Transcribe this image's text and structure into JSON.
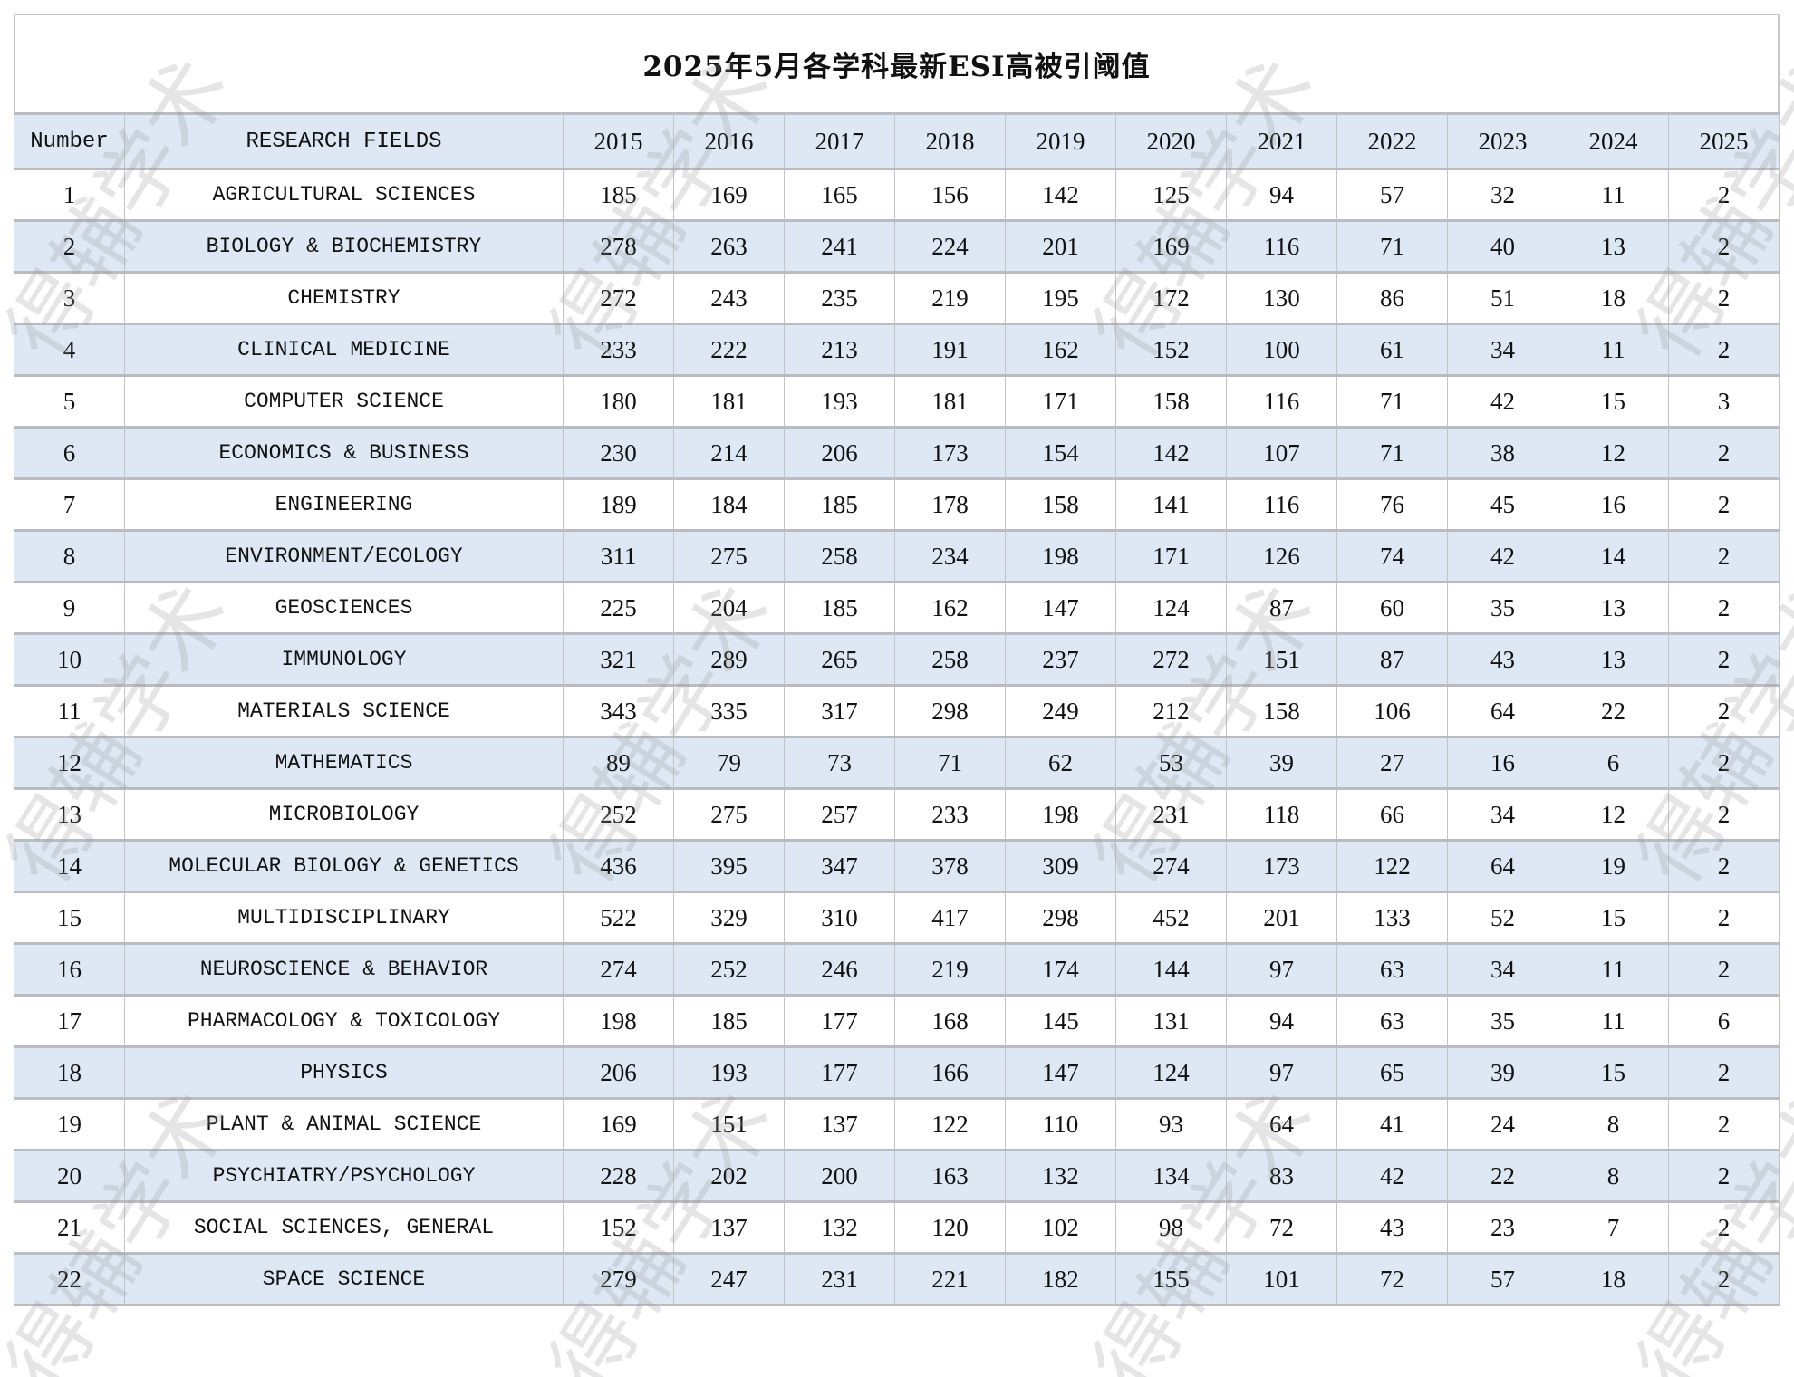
{
  "title": "2025年5月各学科最新ESI高被引阈值",
  "watermark": "得辅学术",
  "colors": {
    "header_bg": "#dde8f4",
    "alt_row_bg": "#dde8f4",
    "border": "#b9bcc0"
  },
  "headers": {
    "number": "Number",
    "field": "RESEARCH FIELDS",
    "years": [
      "2015",
      "2016",
      "2017",
      "2018",
      "2019",
      "2020",
      "2021",
      "2022",
      "2023",
      "2024",
      "2025"
    ]
  },
  "rows": [
    {
      "n": "1",
      "field": "AGRICULTURAL SCIENCES",
      "v": [
        "185",
        "169",
        "165",
        "156",
        "142",
        "125",
        "94",
        "57",
        "32",
        "11",
        "2"
      ]
    },
    {
      "n": "2",
      "field": "BIOLOGY & BIOCHEMISTRY",
      "v": [
        "278",
        "263",
        "241",
        "224",
        "201",
        "169",
        "116",
        "71",
        "40",
        "13",
        "2"
      ]
    },
    {
      "n": "3",
      "field": "CHEMISTRY",
      "v": [
        "272",
        "243",
        "235",
        "219",
        "195",
        "172",
        "130",
        "86",
        "51",
        "18",
        "2"
      ]
    },
    {
      "n": "4",
      "field": "CLINICAL MEDICINE",
      "v": [
        "233",
        "222",
        "213",
        "191",
        "162",
        "152",
        "100",
        "61",
        "34",
        "11",
        "2"
      ]
    },
    {
      "n": "5",
      "field": "COMPUTER SCIENCE",
      "v": [
        "180",
        "181",
        "193",
        "181",
        "171",
        "158",
        "116",
        "71",
        "42",
        "15",
        "3"
      ]
    },
    {
      "n": "6",
      "field": "ECONOMICS & BUSINESS",
      "v": [
        "230",
        "214",
        "206",
        "173",
        "154",
        "142",
        "107",
        "71",
        "38",
        "12",
        "2"
      ]
    },
    {
      "n": "7",
      "field": "ENGINEERING",
      "v": [
        "189",
        "184",
        "185",
        "178",
        "158",
        "141",
        "116",
        "76",
        "45",
        "16",
        "2"
      ]
    },
    {
      "n": "8",
      "field": "ENVIRONMENT/ECOLOGY",
      "v": [
        "311",
        "275",
        "258",
        "234",
        "198",
        "171",
        "126",
        "74",
        "42",
        "14",
        "2"
      ]
    },
    {
      "n": "9",
      "field": "GEOSCIENCES",
      "v": [
        "225",
        "204",
        "185",
        "162",
        "147",
        "124",
        "87",
        "60",
        "35",
        "13",
        "2"
      ]
    },
    {
      "n": "10",
      "field": "IMMUNOLOGY",
      "v": [
        "321",
        "289",
        "265",
        "258",
        "237",
        "272",
        "151",
        "87",
        "43",
        "13",
        "2"
      ]
    },
    {
      "n": "11",
      "field": "MATERIALS SCIENCE",
      "v": [
        "343",
        "335",
        "317",
        "298",
        "249",
        "212",
        "158",
        "106",
        "64",
        "22",
        "2"
      ]
    },
    {
      "n": "12",
      "field": "MATHEMATICS",
      "v": [
        "89",
        "79",
        "73",
        "71",
        "62",
        "53",
        "39",
        "27",
        "16",
        "6",
        "2"
      ]
    },
    {
      "n": "13",
      "field": "MICROBIOLOGY",
      "v": [
        "252",
        "275",
        "257",
        "233",
        "198",
        "231",
        "118",
        "66",
        "34",
        "12",
        "2"
      ]
    },
    {
      "n": "14",
      "field": "MOLECULAR BIOLOGY & GENETICS",
      "v": [
        "436",
        "395",
        "347",
        "378",
        "309",
        "274",
        "173",
        "122",
        "64",
        "19",
        "2"
      ]
    },
    {
      "n": "15",
      "field": "MULTIDISCIPLINARY",
      "v": [
        "522",
        "329",
        "310",
        "417",
        "298",
        "452",
        "201",
        "133",
        "52",
        "15",
        "2"
      ]
    },
    {
      "n": "16",
      "field": "NEUROSCIENCE & BEHAVIOR",
      "v": [
        "274",
        "252",
        "246",
        "219",
        "174",
        "144",
        "97",
        "63",
        "34",
        "11",
        "2"
      ]
    },
    {
      "n": "17",
      "field": "PHARMACOLOGY & TOXICOLOGY",
      "v": [
        "198",
        "185",
        "177",
        "168",
        "145",
        "131",
        "94",
        "63",
        "35",
        "11",
        "6"
      ]
    },
    {
      "n": "18",
      "field": "PHYSICS",
      "v": [
        "206",
        "193",
        "177",
        "166",
        "147",
        "124",
        "97",
        "65",
        "39",
        "15",
        "2"
      ]
    },
    {
      "n": "19",
      "field": "PLANT & ANIMAL SCIENCE",
      "v": [
        "169",
        "151",
        "137",
        "122",
        "110",
        "93",
        "64",
        "41",
        "24",
        "8",
        "2"
      ]
    },
    {
      "n": "20",
      "field": "PSYCHIATRY/PSYCHOLOGY",
      "v": [
        "228",
        "202",
        "200",
        "163",
        "132",
        "134",
        "83",
        "42",
        "22",
        "8",
        "2"
      ]
    },
    {
      "n": "21",
      "field": "SOCIAL SCIENCES, GENERAL",
      "v": [
        "152",
        "137",
        "132",
        "120",
        "102",
        "98",
        "72",
        "43",
        "23",
        "7",
        "2"
      ]
    },
    {
      "n": "22",
      "field": "SPACE SCIENCE",
      "v": [
        "279",
        "247",
        "231",
        "221",
        "182",
        "155",
        "101",
        "72",
        "57",
        "18",
        "2"
      ]
    }
  ]
}
